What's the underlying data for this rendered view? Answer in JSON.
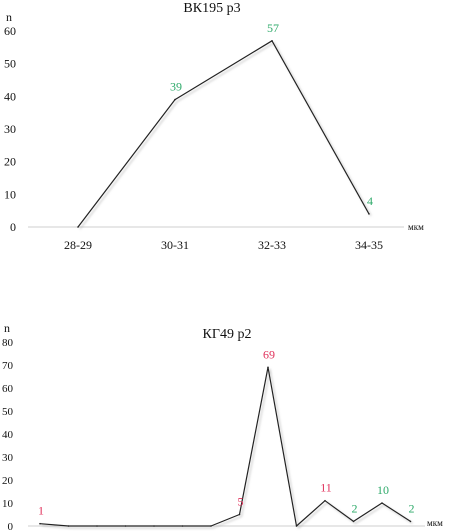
{
  "chart_data": [
    {
      "type": "line",
      "title": "ВК195 р3",
      "ylabel": "n",
      "xunit": "мкм",
      "categories": [
        "28-29",
        "30-31",
        "32-33",
        "34-35"
      ],
      "ylim": [
        0,
        60
      ],
      "yticks": [
        0,
        10,
        20,
        30,
        40,
        50,
        60
      ],
      "series": [
        {
          "values": [
            0,
            39,
            57,
            4
          ]
        }
      ],
      "data_labels": [
        {
          "index": 1,
          "text": "39",
          "color": "#2eaa6a"
        },
        {
          "index": 2,
          "text": "57",
          "color": "#2eaa6a"
        },
        {
          "index": 3,
          "text": "4",
          "color": "#2eaa6a"
        }
      ],
      "grid": false
    },
    {
      "type": "line",
      "title": "КГ49 р2",
      "ylabel": "n",
      "xunit": "мкм",
      "ylim": [
        0,
        80
      ],
      "yticks": [
        0,
        10,
        20,
        30,
        40,
        50,
        60,
        70,
        80
      ],
      "series": [
        {
          "values": [
            1,
            0,
            0,
            0,
            0,
            0,
            0,
            5,
            69,
            0,
            11,
            2,
            10,
            2
          ]
        }
      ],
      "data_labels": [
        {
          "index": 0,
          "text": "1",
          "color": "#e0305a"
        },
        {
          "index": 7,
          "text": "5",
          "color": "#e0305a"
        },
        {
          "index": 8,
          "text": "69",
          "color": "#e0305a"
        },
        {
          "index": 10,
          "text": "11",
          "color": "#e0305a"
        },
        {
          "index": 11,
          "text": "2",
          "color": "#2eaa6a"
        },
        {
          "index": 12,
          "text": "10",
          "color": "#2eaa6a"
        },
        {
          "index": 13,
          "text": "2",
          "color": "#2eaa6a"
        }
      ],
      "grid": false
    }
  ]
}
